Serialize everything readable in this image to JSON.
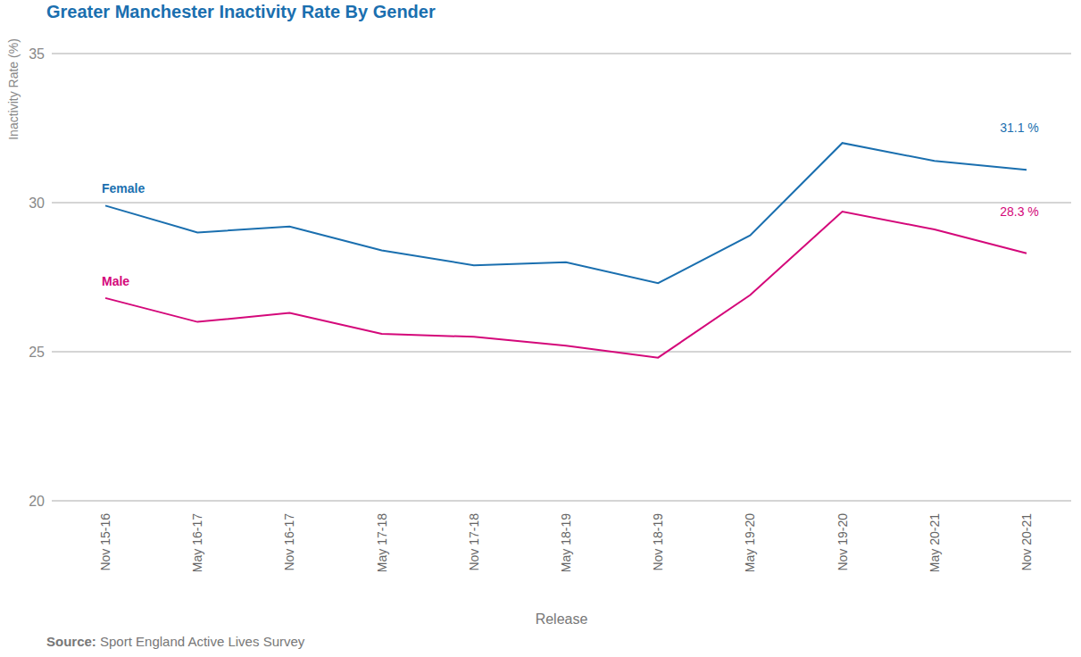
{
  "chart_data": {
    "type": "line",
    "title": "Greater Manchester Inactivity Rate By Gender",
    "x_label": "Release",
    "y_label": "Inactivity Rate (%)",
    "source": "Source: Sport England Active Lives Survey",
    "categories": [
      "Nov 15-16",
      "May 16-17",
      "Nov 16-17",
      "May 17-18",
      "Nov 17-18",
      "May 18-19",
      "Nov 18-19",
      "May 19-20",
      "Nov 19-20",
      "May 20-21",
      "Nov 20-21"
    ],
    "series": [
      {
        "name": "Female",
        "color": "#1a6faf",
        "values": [
          29.9,
          29.0,
          29.2,
          28.4,
          27.9,
          28.0,
          27.3,
          28.9,
          32.0,
          31.4,
          31.1
        ],
        "value_labels": [
          null,
          null,
          null,
          null,
          null,
          null,
          null,
          null,
          null,
          null,
          "31.1 %"
        ]
      },
      {
        "name": "Male",
        "color": "#d4087a",
        "values": [
          26.8,
          26.0,
          26.3,
          25.6,
          25.5,
          25.2,
          24.8,
          26.9,
          29.7,
          29.1,
          28.3
        ],
        "value_labels": [
          null,
          null,
          null,
          null,
          null,
          null,
          null,
          null,
          null,
          null,
          "28.3 %"
        ]
      }
    ],
    "ylim": [
      20,
      35
    ],
    "yticks": [
      20,
      25,
      30,
      35
    ],
    "grid": true,
    "data_labels": true
  }
}
